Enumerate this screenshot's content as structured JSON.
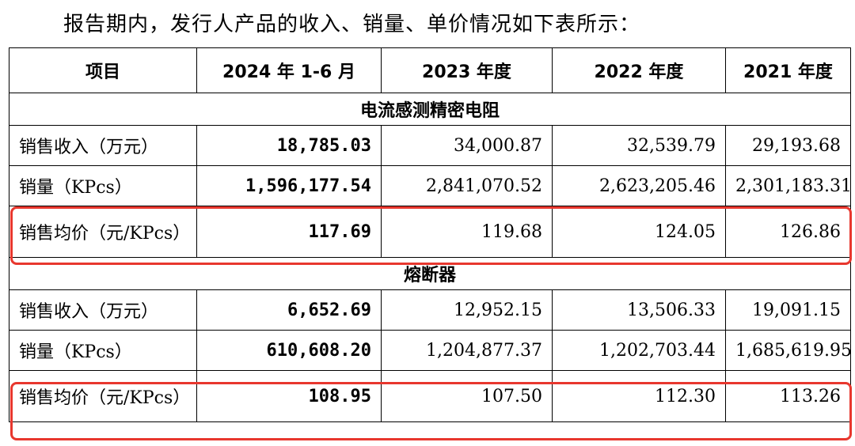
{
  "intro": "报告期内，发行人产品的收入、销量、单价情况如下表所示：",
  "headers": [
    "项目",
    "2024 年 1-6 月",
    "2023 年度",
    "2022 年度",
    "2021 年度"
  ],
  "sections": [
    {
      "title": "电流感测精密电阻",
      "rows": [
        {
          "label": "销售收入（万元）",
          "values": [
            "18,785.03",
            "34,000.87",
            "32,539.79",
            "29,193.68"
          ]
        },
        {
          "label": "销量（KPcs）",
          "values": [
            "1,596,177.54",
            "2,841,070.52",
            "2,623,205.46",
            "2,301,183.31"
          ]
        },
        {
          "label": "销售均价（元/KPcs）",
          "values": [
            "117.69",
            "119.68",
            "124.05",
            "126.86"
          ]
        }
      ]
    },
    {
      "title": "熔断器",
      "rows": [
        {
          "label": "销售收入（万元）",
          "values": [
            "6,652.69",
            "12,952.15",
            "13,506.33",
            "19,091.15"
          ]
        },
        {
          "label": "销量（KPcs）",
          "values": [
            "610,608.20",
            "1,204,877.37",
            "1,202,703.44",
            "1,685,619.95"
          ]
        },
        {
          "label": "销售均价（元/KPcs）",
          "values": [
            "108.95",
            "107.50",
            "112.30",
            "113.26"
          ]
        }
      ]
    }
  ]
}
